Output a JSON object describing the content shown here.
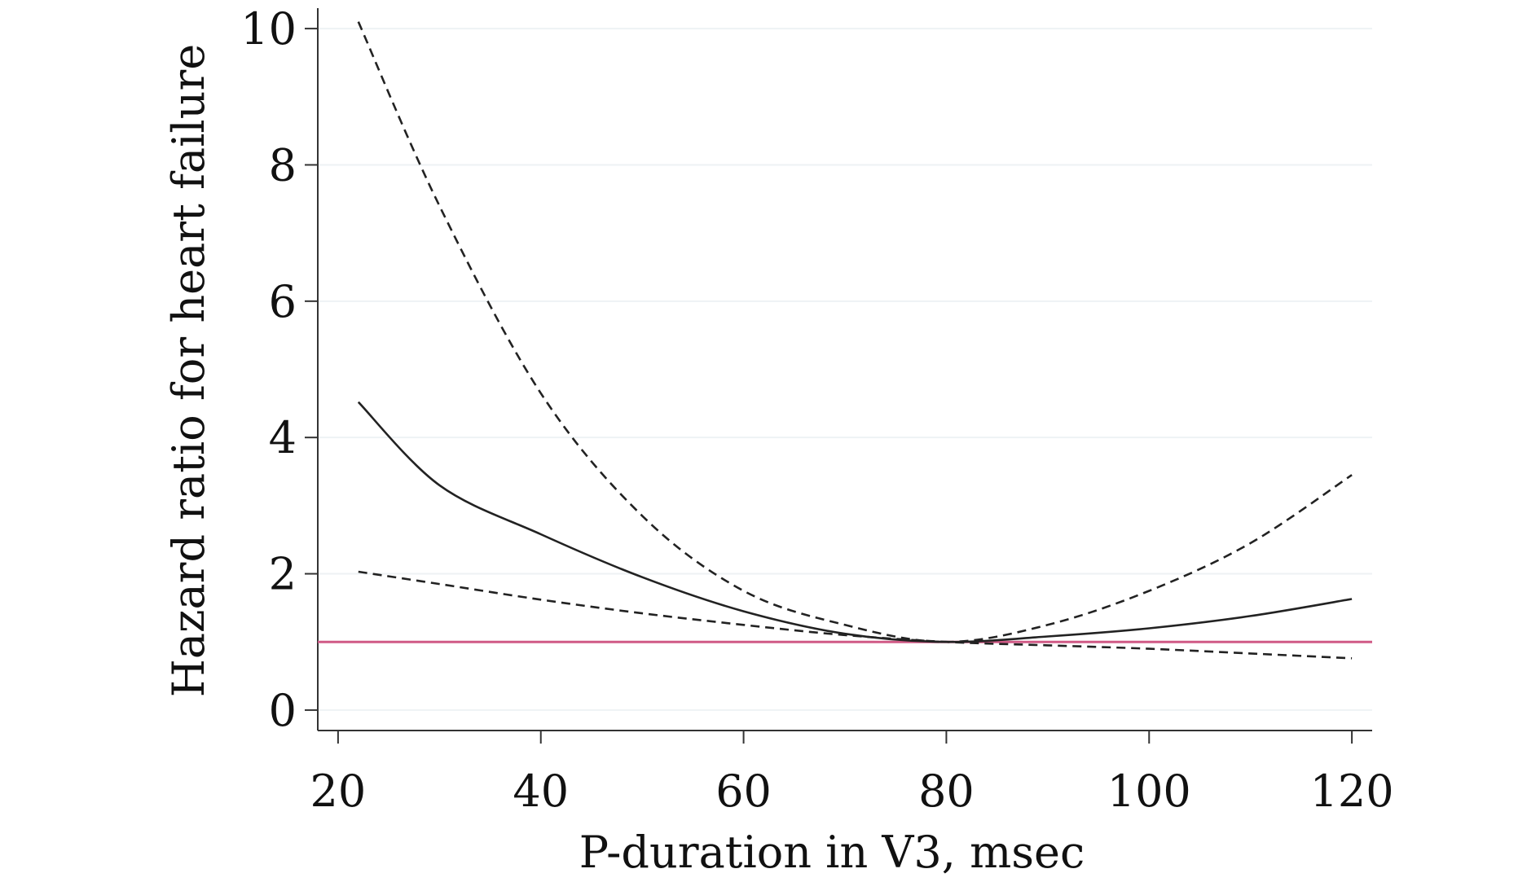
{
  "chart_data": {
    "type": "line",
    "xlabel": "P-duration in V3, msec",
    "ylabel": "Hazard ratio for heart failure",
    "xlim": [
      18,
      122
    ],
    "ylim": [
      -0.3,
      10.3
    ],
    "x_ticks": [
      20,
      40,
      60,
      80,
      100,
      120
    ],
    "y_ticks": [
      0,
      2,
      4,
      6,
      8,
      10
    ],
    "grid": "horizontal",
    "reference_line": {
      "y": 1,
      "color": "#d05a86"
    },
    "series": [
      {
        "style": "solid",
        "color": "#222222",
        "x": [
          22,
          30,
          40,
          50,
          60,
          70,
          80,
          90,
          100,
          110,
          120
        ],
        "y": [
          4.52,
          3.3,
          2.58,
          1.95,
          1.45,
          1.12,
          1.0,
          1.08,
          1.2,
          1.38,
          1.63
        ]
      },
      {
        "style": "dashed",
        "color": "#222222",
        "x": [
          22,
          30,
          40,
          50,
          60,
          70,
          80,
          90,
          100,
          110,
          120
        ],
        "y": [
          10.1,
          7.4,
          4.65,
          2.85,
          1.75,
          1.25,
          1.0,
          1.25,
          1.75,
          2.45,
          3.45
        ]
      },
      {
        "style": "dashed",
        "color": "#222222",
        "x": [
          22,
          30,
          40,
          50,
          60,
          70,
          80,
          90,
          100,
          110,
          120
        ],
        "y": [
          2.03,
          1.85,
          1.62,
          1.42,
          1.25,
          1.1,
          1.0,
          0.95,
          0.9,
          0.83,
          0.76
        ]
      }
    ]
  }
}
